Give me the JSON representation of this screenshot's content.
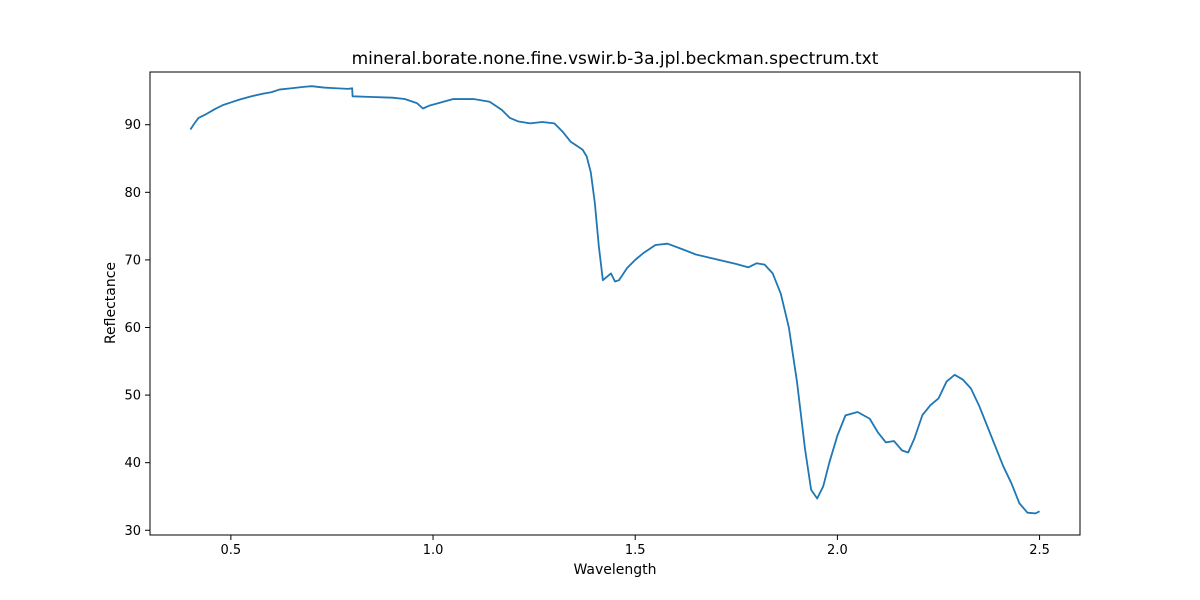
{
  "chart_data": {
    "type": "line",
    "title": "mineral.borate.none.fine.vswir.b-3a.jpl.beckman.spectrum.txt",
    "xlabel": "Wavelength",
    "ylabel": "Reflectance",
    "xlim": [
      0.3,
      2.6
    ],
    "ylim": [
      29.3,
      97.8
    ],
    "x_ticks": [
      0.5,
      1.0,
      1.5,
      2.0,
      2.5
    ],
    "x_tick_labels": [
      "0.5",
      "1.0",
      "1.5",
      "2.0",
      "2.5"
    ],
    "y_ticks": [
      30,
      40,
      50,
      60,
      70,
      80,
      90
    ],
    "y_tick_labels": [
      "30",
      "40",
      "50",
      "60",
      "70",
      "80",
      "90"
    ],
    "grid": false,
    "series": [
      {
        "color": "#1f77b4",
        "points": [
          [
            0.4,
            89.3
          ],
          [
            0.41,
            90.2
          ],
          [
            0.42,
            91.0
          ],
          [
            0.44,
            91.6
          ],
          [
            0.46,
            92.3
          ],
          [
            0.48,
            92.9
          ],
          [
            0.5,
            93.3
          ],
          [
            0.52,
            93.7
          ],
          [
            0.55,
            94.2
          ],
          [
            0.58,
            94.6
          ],
          [
            0.6,
            94.8
          ],
          [
            0.62,
            95.2
          ],
          [
            0.65,
            95.4
          ],
          [
            0.68,
            95.6
          ],
          [
            0.7,
            95.7
          ],
          [
            0.73,
            95.5
          ],
          [
            0.76,
            95.4
          ],
          [
            0.79,
            95.3
          ],
          [
            0.8,
            95.4
          ],
          [
            0.801,
            94.2
          ],
          [
            0.85,
            94.1
          ],
          [
            0.9,
            94.0
          ],
          [
            0.93,
            93.8
          ],
          [
            0.96,
            93.2
          ],
          [
            0.975,
            92.4
          ],
          [
            0.99,
            92.8
          ],
          [
            1.02,
            93.3
          ],
          [
            1.05,
            93.8
          ],
          [
            1.1,
            93.8
          ],
          [
            1.14,
            93.4
          ],
          [
            1.17,
            92.2
          ],
          [
            1.19,
            91.0
          ],
          [
            1.21,
            90.5
          ],
          [
            1.24,
            90.2
          ],
          [
            1.27,
            90.4
          ],
          [
            1.3,
            90.2
          ],
          [
            1.32,
            89.0
          ],
          [
            1.34,
            87.5
          ],
          [
            1.36,
            86.7
          ],
          [
            1.37,
            86.3
          ],
          [
            1.38,
            85.3
          ],
          [
            1.39,
            83.0
          ],
          [
            1.4,
            78.5
          ],
          [
            1.41,
            72.0
          ],
          [
            1.42,
            67.0
          ],
          [
            1.43,
            67.5
          ],
          [
            1.44,
            68.0
          ],
          [
            1.45,
            66.8
          ],
          [
            1.46,
            67.0
          ],
          [
            1.48,
            68.8
          ],
          [
            1.5,
            70.0
          ],
          [
            1.52,
            71.0
          ],
          [
            1.55,
            72.2
          ],
          [
            1.58,
            72.4
          ],
          [
            1.62,
            71.5
          ],
          [
            1.65,
            70.8
          ],
          [
            1.7,
            70.1
          ],
          [
            1.75,
            69.4
          ],
          [
            1.78,
            68.9
          ],
          [
            1.8,
            69.5
          ],
          [
            1.82,
            69.3
          ],
          [
            1.84,
            68.0
          ],
          [
            1.86,
            65.0
          ],
          [
            1.88,
            60.0
          ],
          [
            1.9,
            52.0
          ],
          [
            1.92,
            42.0
          ],
          [
            1.935,
            36.0
          ],
          [
            1.95,
            34.7
          ],
          [
            1.965,
            36.5
          ],
          [
            1.98,
            40.0
          ],
          [
            2.0,
            44.0
          ],
          [
            2.02,
            47.0
          ],
          [
            2.05,
            47.5
          ],
          [
            2.08,
            46.5
          ],
          [
            2.1,
            44.5
          ],
          [
            2.12,
            43.0
          ],
          [
            2.14,
            43.2
          ],
          [
            2.16,
            41.8
          ],
          [
            2.175,
            41.5
          ],
          [
            2.19,
            43.5
          ],
          [
            2.21,
            47.0
          ],
          [
            2.23,
            48.5
          ],
          [
            2.25,
            49.5
          ],
          [
            2.27,
            52.0
          ],
          [
            2.29,
            53.0
          ],
          [
            2.31,
            52.3
          ],
          [
            2.33,
            51.0
          ],
          [
            2.35,
            48.5
          ],
          [
            2.37,
            45.5
          ],
          [
            2.39,
            42.5
          ],
          [
            2.41,
            39.5
          ],
          [
            2.43,
            37.0
          ],
          [
            2.45,
            34.0
          ],
          [
            2.47,
            32.6
          ],
          [
            2.49,
            32.5
          ],
          [
            2.5,
            32.8
          ]
        ]
      }
    ]
  }
}
